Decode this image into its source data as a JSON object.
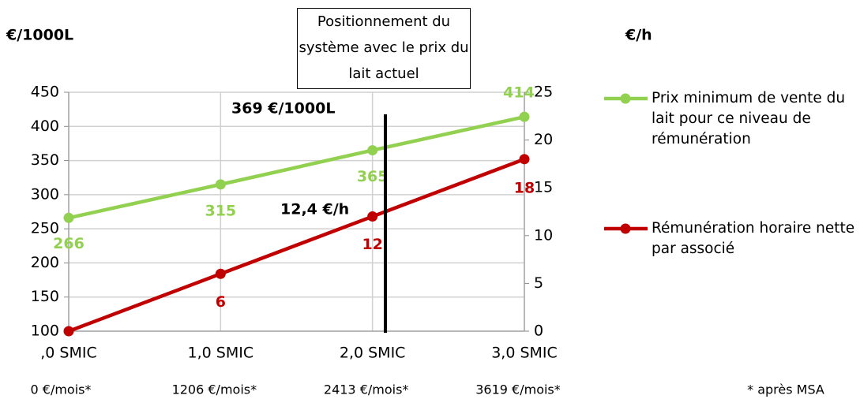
{
  "chart_data": {
    "type": "line",
    "y_label": "€/1000L",
    "y2_label": "€/h",
    "categories": [
      ",0 SMIC",
      "1,0 SMIC",
      "2,0 SMIC",
      "3,0 SMIC"
    ],
    "sub_categories": [
      "0 €/mois*",
      "1206 €/mois*",
      "2413 €/mois*",
      "3619 €/mois*"
    ],
    "footnote": "* après MSA",
    "series": [
      {
        "name": "Prix minimum de vente du lait pour ce niveau de rémunération",
        "color": "#92d050",
        "values": [
          266,
          315,
          365,
          414
        ]
      },
      {
        "name": "Rémunération horaire nette par associé",
        "color": "#c00000",
        "axis": "y2",
        "values": [
          0,
          6,
          12,
          18
        ],
        "value_labels": [
          null,
          "6",
          "12",
          "18"
        ]
      }
    ],
    "ylim": [
      100,
      450
    ],
    "yticks": [
      100,
      150,
      200,
      250,
      300,
      350,
      400,
      450
    ],
    "y2lim": [
      0,
      25
    ],
    "y2ticks": [
      0,
      5,
      10,
      15,
      20,
      25
    ],
    "grid": true,
    "legend": "right",
    "annotations": [
      "Positionnement du système avec le prix du lait actuel",
      "369 €/1000L",
      "12,4 €/h"
    ]
  }
}
